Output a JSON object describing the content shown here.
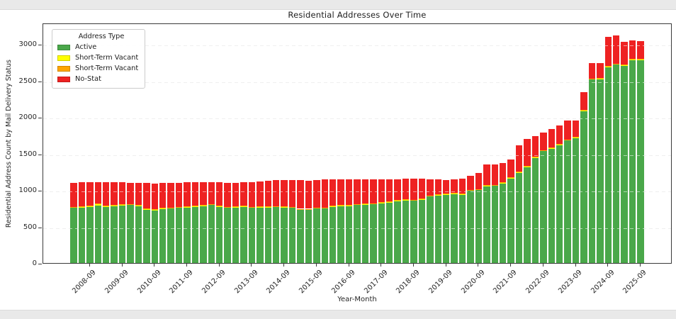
{
  "chart_data": {
    "type": "bar",
    "stacked": true,
    "title": "Residential Addresses Over Time",
    "xlabel": "Year-Month",
    "ylabel": "Residential Address Count by Mail Delivery Status",
    "legend_title": "Address Type",
    "legend_position": "upper left",
    "grid": "horizontal-dashed",
    "ylim": [
      0,
      3296
    ],
    "yticks": [
      0,
      500,
      1000,
      1500,
      2000,
      2500,
      3000
    ],
    "xtick_labels": [
      "2008-09",
      "2009-09",
      "2010-09",
      "2011-09",
      "2012-09",
      "2013-09",
      "2014-09",
      "2015-09",
      "2016-09",
      "2017-09",
      "2018-09",
      "2019-09",
      "2020-09",
      "2021-09",
      "2022-09",
      "2023-09",
      "2024-09",
      "2025-09"
    ],
    "categories": [
      "2008-03",
      "2008-06",
      "2008-09",
      "2008-12",
      "2009-03",
      "2009-06",
      "2009-09",
      "2009-12",
      "2010-03",
      "2010-06",
      "2010-09",
      "2010-12",
      "2011-03",
      "2011-06",
      "2011-09",
      "2011-12",
      "2012-03",
      "2012-06",
      "2012-09",
      "2012-12",
      "2013-03",
      "2013-06",
      "2013-09",
      "2013-12",
      "2014-03",
      "2014-06",
      "2014-09",
      "2014-12",
      "2015-03",
      "2015-06",
      "2015-09",
      "2015-12",
      "2016-03",
      "2016-06",
      "2016-09",
      "2016-12",
      "2017-03",
      "2017-06",
      "2017-09",
      "2017-12",
      "2018-03",
      "2018-06",
      "2018-09",
      "2018-12",
      "2019-03",
      "2019-06",
      "2019-09",
      "2019-12",
      "2020-03",
      "2020-06",
      "2020-09",
      "2020-12",
      "2021-03",
      "2021-06",
      "2021-09",
      "2021-12",
      "2022-03",
      "2022-06",
      "2022-09",
      "2022-12",
      "2023-03",
      "2023-06",
      "2023-09",
      "2023-12",
      "2024-03",
      "2024-06",
      "2024-09",
      "2024-12",
      "2025-03",
      "2025-06",
      "2025-09"
    ],
    "series": [
      {
        "name": "Active",
        "color": "#4aa84a",
        "values": [
          760,
          767,
          777,
          790,
          777,
          786,
          793,
          800,
          786,
          734,
          728,
          744,
          751,
          761,
          767,
          777,
          786,
          800,
          777,
          761,
          767,
          777,
          761,
          767,
          767,
          770,
          767,
          761,
          734,
          734,
          751,
          751,
          777,
          786,
          786,
          800,
          803,
          809,
          825,
          832,
          851,
          864,
          858,
          874,
          916,
          929,
          939,
          948,
          939,
          994,
          1004,
          1052,
          1062,
          1091,
          1166,
          1240,
          1318,
          1448,
          1539,
          1571,
          1620,
          1685,
          1717,
          2089,
          2521,
          2528,
          2690,
          2725,
          2712,
          2790,
          2790
        ]
      },
      {
        "name": "Short-Term Vacant",
        "color": "#ffff00",
        "values": [
          5,
          5,
          5,
          18,
          5,
          5,
          5,
          5,
          5,
          5,
          5,
          5,
          5,
          5,
          5,
          5,
          5,
          5,
          5,
          5,
          5,
          5,
          5,
          5,
          5,
          5,
          5,
          5,
          5,
          5,
          5,
          5,
          5,
          5,
          5,
          5,
          5,
          5,
          5,
          5,
          5,
          5,
          5,
          5,
          5,
          5,
          5,
          5,
          5,
          5,
          5,
          12,
          5,
          5,
          5,
          5,
          5,
          5,
          5,
          5,
          5,
          5,
          5,
          5,
          5,
          5,
          5,
          5,
          5,
          5,
          5
        ]
      },
      {
        "name": "Short-Term Vacant",
        "color": "#ffa500",
        "values": [
          5,
          5,
          5,
          5,
          5,
          5,
          5,
          5,
          5,
          12,
          5,
          5,
          5,
          5,
          5,
          5,
          5,
          5,
          5,
          5,
          5,
          5,
          5,
          5,
          5,
          5,
          5,
          5,
          5,
          5,
          5,
          5,
          5,
          5,
          5,
          5,
          5,
          5,
          5,
          5,
          5,
          5,
          5,
          5,
          5,
          5,
          5,
          5,
          5,
          5,
          5,
          5,
          5,
          10,
          10,
          5,
          5,
          5,
          5,
          5,
          5,
          5,
          5,
          5,
          5,
          5,
          5,
          5,
          5,
          5,
          5
        ]
      },
      {
        "name": "No-Stat",
        "color": "#ee2222",
        "values": [
          330,
          333,
          323,
          297,
          323,
          314,
          307,
          290,
          304,
          349,
          352,
          346,
          339,
          329,
          333,
          323,
          314,
          300,
          323,
          329,
          323,
          323,
          339,
          340,
          347,
          353,
          356,
          362,
          389,
          380,
          372,
          382,
          356,
          347,
          354,
          333,
          330,
          331,
          308,
          308,
          289,
          282,
          288,
          272,
          224,
          204,
          184,
          185,
          207,
          188,
          217,
          281,
          278,
          261,
          234,
          360,
          373,
          282,
          243,
          256,
          259,
          256,
          223,
          241,
          207,
          200,
          400,
          385,
          308,
          250,
          240
        ]
      }
    ]
  }
}
